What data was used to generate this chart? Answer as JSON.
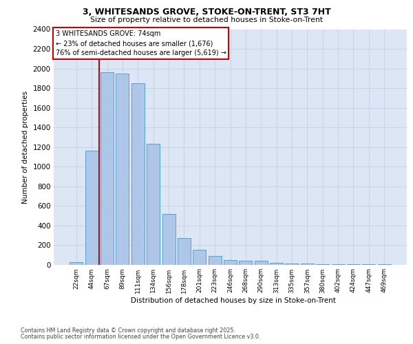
{
  "title1": "3, WHITESANDS GROVE, STOKE-ON-TRENT, ST3 7HT",
  "title2": "Size of property relative to detached houses in Stoke-on-Trent",
  "xlabel": "Distribution of detached houses by size in Stoke-on-Trent",
  "ylabel": "Number of detached properties",
  "categories": [
    "22sqm",
    "44sqm",
    "67sqm",
    "89sqm",
    "111sqm",
    "134sqm",
    "156sqm",
    "178sqm",
    "201sqm",
    "223sqm",
    "246sqm",
    "268sqm",
    "290sqm",
    "313sqm",
    "335sqm",
    "357sqm",
    "380sqm",
    "402sqm",
    "424sqm",
    "447sqm",
    "469sqm"
  ],
  "values": [
    25,
    1160,
    1960,
    1950,
    1850,
    1230,
    520,
    275,
    155,
    90,
    50,
    40,
    40,
    22,
    15,
    12,
    5,
    5,
    5,
    5,
    5
  ],
  "bar_color": "#aec6e8",
  "bar_edge_color": "#5a9fd4",
  "grid_color": "#c8d4e8",
  "background_color": "#dde6f5",
  "vline_color": "#cc0000",
  "annotation_line1": "3 WHITESANDS GROVE: 74sqm",
  "annotation_line2": "← 23% of detached houses are smaller (1,676)",
  "annotation_line3": "76% of semi-detached houses are larger (5,619) →",
  "annotation_box_edgecolor": "#cc0000",
  "footer1": "Contains HM Land Registry data © Crown copyright and database right 2025.",
  "footer2": "Contains public sector information licensed under the Open Government Licence v3.0.",
  "ylim": [
    0,
    2400
  ],
  "yticks": [
    0,
    200,
    400,
    600,
    800,
    1000,
    1200,
    1400,
    1600,
    1800,
    2000,
    2200,
    2400
  ],
  "fig_width": 6.0,
  "fig_height": 5.0,
  "dpi": 100
}
